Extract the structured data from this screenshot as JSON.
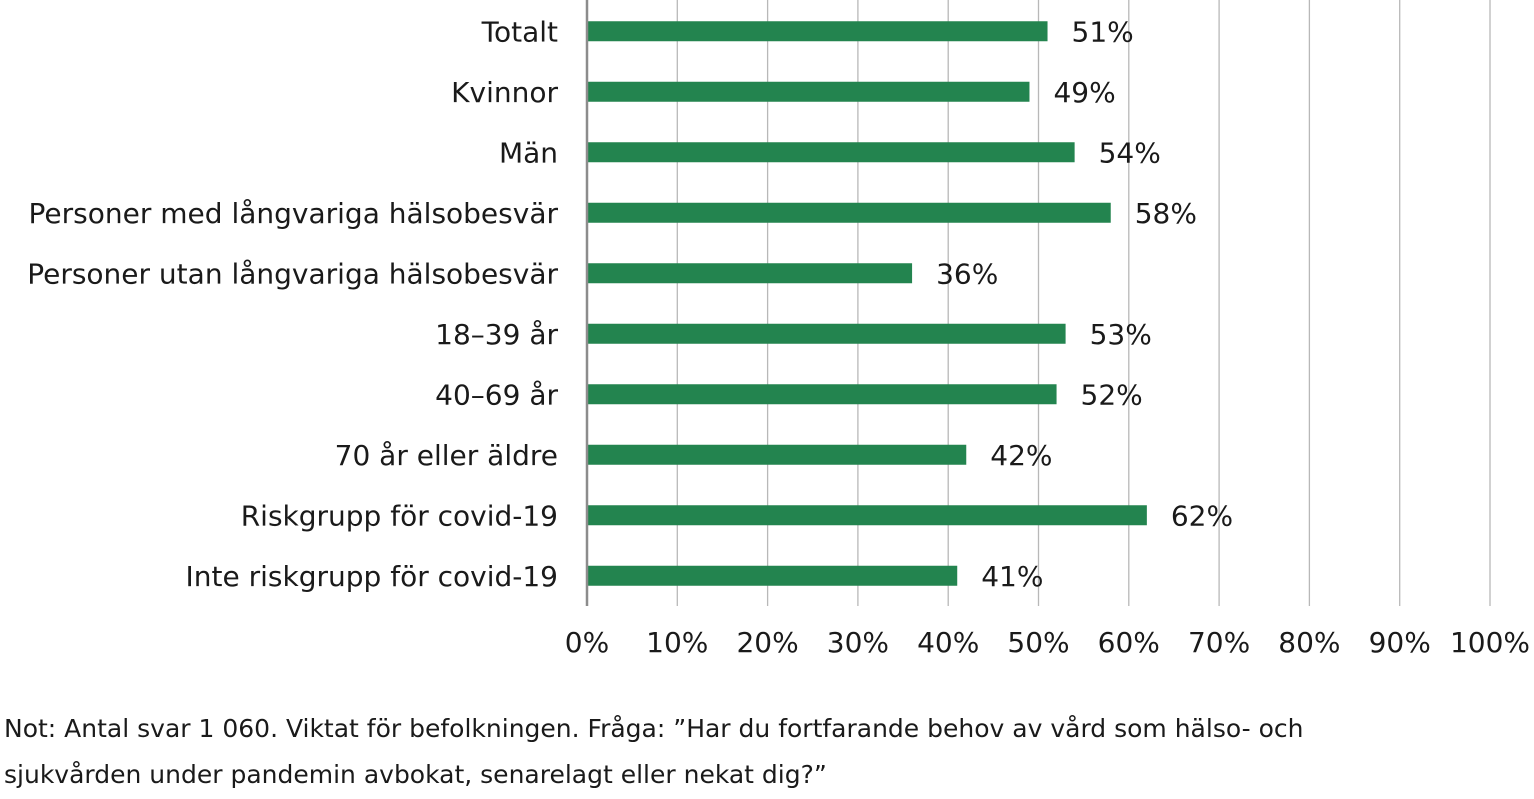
{
  "chart_data": {
    "type": "bar",
    "orientation": "horizontal",
    "categories": [
      "Totalt",
      "Kvinnor",
      "Män",
      "Personer med långvariga hälsobesvär",
      "Personer utan långvariga hälsobesvär",
      "18–39 år",
      "40–69 år",
      "70 år eller äldre",
      "Riskgrupp för covid-19",
      "Inte riskgrupp för covid-19"
    ],
    "values": [
      51,
      49,
      54,
      58,
      36,
      53,
      52,
      42,
      62,
      41
    ],
    "value_labels": [
      "51%",
      "49%",
      "54%",
      "58%",
      "36%",
      "53%",
      "52%",
      "42%",
      "62%",
      "41%"
    ],
    "xlim": [
      0,
      100
    ],
    "xticks": [
      0,
      10,
      20,
      30,
      40,
      50,
      60,
      70,
      80,
      90,
      100
    ],
    "xtick_labels": [
      "0%",
      "10%",
      "20%",
      "30%",
      "40%",
      "50%",
      "60%",
      "70%",
      "80%",
      "90%",
      "100%"
    ],
    "grid": "vertical",
    "legend": "none",
    "bar_color": "#23844f",
    "grid_color": "#b8b8b8",
    "axis_color": "#8c8c8c"
  },
  "note": {
    "line1": "Not: Antal svar 1 060. Viktat för befolkningen. Fråga: ”Har du fortfarande behov av vård som hälso- och",
    "line2": "sjukvården under pandemin avbokat, senarelagt eller nekat dig?”"
  }
}
